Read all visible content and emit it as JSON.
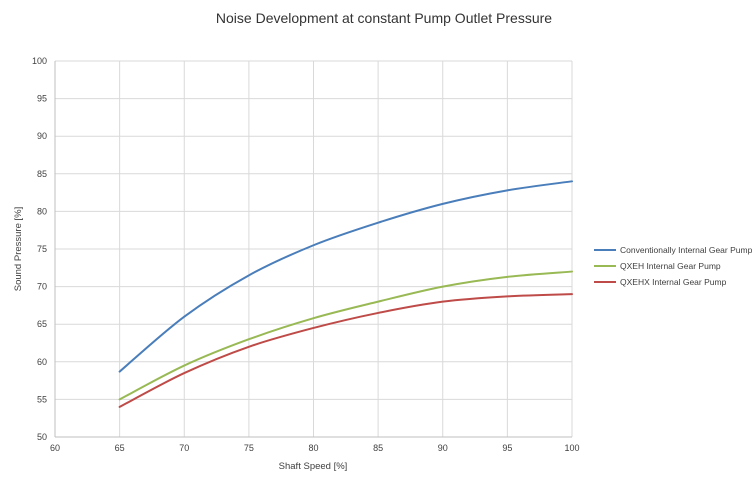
{
  "chart_data": {
    "type": "line",
    "title": "Noise Development at constant Pump Outlet Pressure",
    "xlabel": "Shaft Speed [%]",
    "ylabel": "Sound Pressure [%]",
    "xlim": [
      60,
      100
    ],
    "ylim": [
      50,
      100
    ],
    "x_ticks": [
      "60",
      "65",
      "70",
      "75",
      "80",
      "85",
      "90",
      "95",
      "100"
    ],
    "y_ticks": [
      "50",
      "55",
      "60",
      "65",
      "70",
      "75",
      "80",
      "85",
      "90",
      "95",
      "100"
    ],
    "grid": true,
    "legend_position": "right",
    "x": [
      65,
      70,
      75,
      80,
      85,
      90,
      95,
      100
    ],
    "series": [
      {
        "name": "Conventionally Internal Gear Pump",
        "color": "#4a7ebb",
        "values": [
          58.7,
          66.0,
          71.5,
          75.5,
          78.5,
          81.0,
          82.8,
          84.0
        ]
      },
      {
        "name": "QXEH Internal Gear Pump",
        "color": "#98b954",
        "values": [
          55.0,
          59.5,
          63.0,
          65.8,
          68.0,
          70.0,
          71.3,
          72.0
        ]
      },
      {
        "name": "QXEHX Internal Gear Pump",
        "color": "#be4b48",
        "values": [
          54.0,
          58.5,
          62.0,
          64.5,
          66.5,
          68.0,
          68.7,
          69.0
        ]
      }
    ]
  }
}
